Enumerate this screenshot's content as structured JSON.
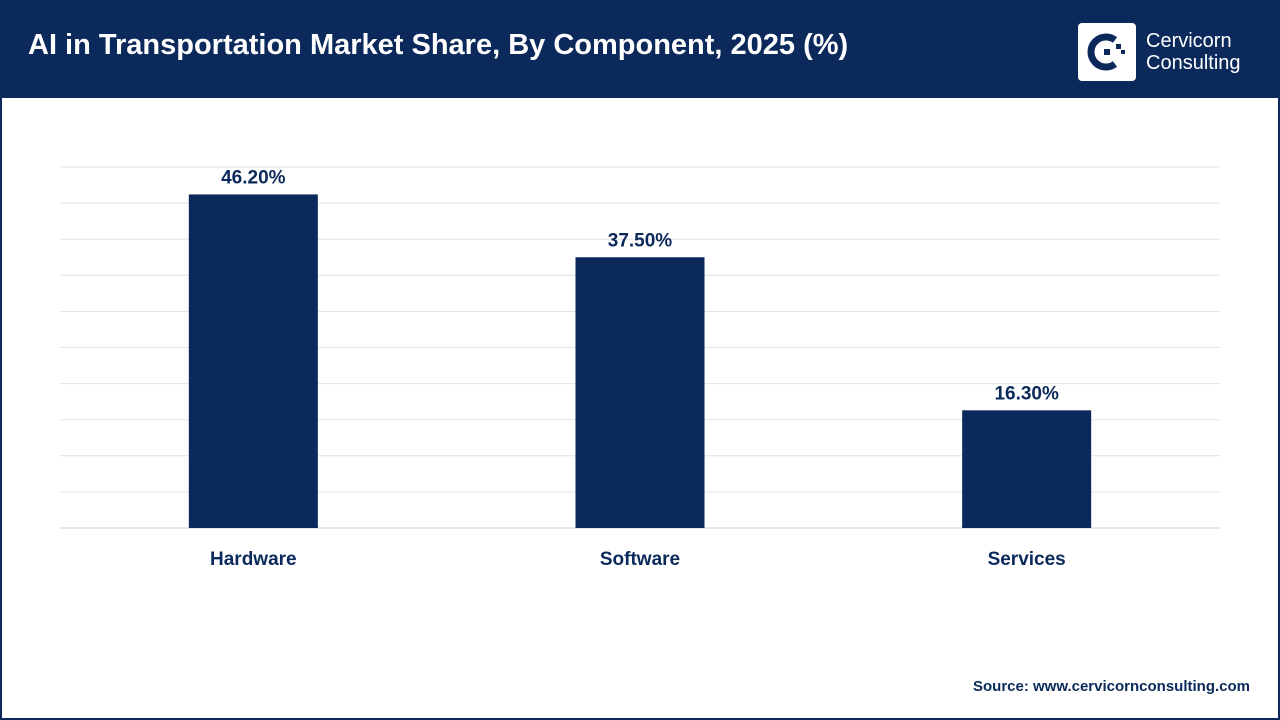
{
  "header": {
    "title": "AI in Transportation Market Share, By Component, 2025 (%)",
    "logo_line1": "Cervicorn",
    "logo_line2": "Consulting"
  },
  "colors": {
    "brand": "#0b2a5b",
    "bar": "#0b2a5b",
    "grid": "#e3e3e3",
    "text": "#0b2a5b"
  },
  "chart_data": {
    "type": "bar",
    "categories": [
      "Hardware",
      "Software",
      "Services"
    ],
    "values": [
      46.2,
      37.5,
      16.3
    ],
    "data_labels": [
      "46.20%",
      "37.50%",
      "16.30%"
    ],
    "title": "AI in Transportation Market Share, By Component, 2025 (%)",
    "xlabel": "",
    "ylabel": "",
    "ylim": [
      0,
      50
    ],
    "grid": true,
    "legend": "none"
  },
  "footer": {
    "source": "Source: www.cervicornconsulting.com"
  }
}
